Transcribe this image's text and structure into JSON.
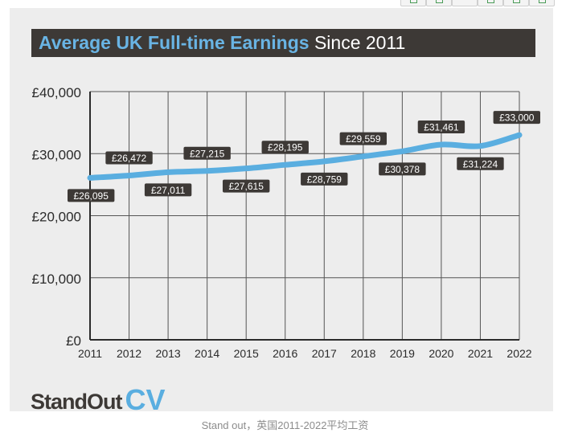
{
  "header": {
    "title_highlight": "Average UK Full-time Earnings",
    "title_rest": " Since 2011"
  },
  "brand": {
    "word": "StandOut",
    "accent": "CV"
  },
  "caption": "Stand out，英国2011-2022平均工资",
  "colors": {
    "line": "#5aaee0",
    "title_bar": "#3d3936",
    "title_highlight": "#69b4e4",
    "card_bg": "#ededed",
    "grid": "#555555",
    "label_bg": "#3d3936"
  },
  "chart_data": {
    "type": "line",
    "title": "Average UK Full-time Earnings Since 2011",
    "xlabel": "",
    "ylabel": "",
    "categories": [
      "2011",
      "2012",
      "2013",
      "2014",
      "2015",
      "2016",
      "2017",
      "2018",
      "2019",
      "2020",
      "2021",
      "2022"
    ],
    "values": [
      26095,
      26472,
      27011,
      27215,
      27615,
      28195,
      28759,
      29559,
      30378,
      31461,
      31224,
      33000
    ],
    "data_labels": [
      "£26,095",
      "£26,472",
      "£27,011",
      "£27,215",
      "£27,615",
      "£28,195",
      "£28,759",
      "£29,559",
      "£30,378",
      "£31,461",
      "£31,224",
      "£33,000"
    ],
    "label_positions": [
      "below",
      "above",
      "below",
      "above",
      "below",
      "above",
      "below",
      "above",
      "below",
      "above",
      "below",
      "above"
    ],
    "ylim": [
      0,
      40000
    ],
    "yticks": [
      0,
      10000,
      20000,
      30000,
      40000
    ],
    "ytick_labels": [
      "£0",
      "£10,000",
      "£20,000",
      "£30,000",
      "£40,000"
    ],
    "grid": true,
    "legend": "none"
  }
}
